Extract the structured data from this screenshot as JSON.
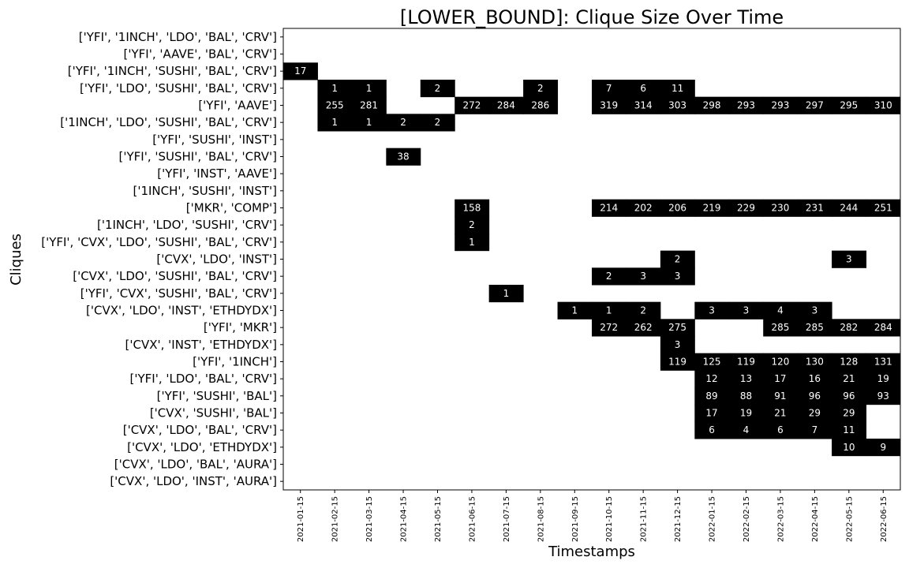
{
  "chart_data": {
    "type": "heatmap",
    "title": "[LOWER_BOUND]: Clique Size Over Time",
    "xlabel": "Timestamps",
    "ylabel": "Cliques",
    "x": [
      "2021-01-15",
      "2021-02-15",
      "2021-03-15",
      "2021-04-15",
      "2021-05-15",
      "2021-06-15",
      "2021-07-15",
      "2021-08-15",
      "2021-09-15",
      "2021-10-15",
      "2021-11-15",
      "2021-12-15",
      "2022-01-15",
      "2022-02-15",
      "2022-03-15",
      "2022-04-15",
      "2022-05-15",
      "2022-06-15"
    ],
    "y": [
      "['YFI', '1INCH', 'LDO', 'BAL', 'CRV']",
      "['YFI', 'AAVE', 'BAL', 'CRV']",
      "['YFI', '1INCH', 'SUSHI', 'BAL', 'CRV']",
      "['YFI', 'LDO', 'SUSHI', 'BAL', 'CRV']",
      "['YFI', 'AAVE']",
      "['1INCH', 'LDO', 'SUSHI', 'BAL', 'CRV']",
      "['YFI', 'SUSHI', 'INST']",
      "['YFI', 'SUSHI', 'BAL', 'CRV']",
      "['YFI', 'INST', 'AAVE']",
      "['1INCH', 'SUSHI', 'INST']",
      "['MKR', 'COMP']",
      "['1INCH', 'LDO', 'SUSHI', 'CRV']",
      "['YFI', 'CVX', 'LDO', 'SUSHI', 'BAL', 'CRV']",
      "['CVX', 'LDO', 'INST']",
      "['CVX', 'LDO', 'SUSHI', 'BAL', 'CRV']",
      "['YFI', 'CVX', 'SUSHI', 'BAL', 'CRV']",
      "['CVX', 'LDO', 'INST', 'ETHDYDX']",
      "['YFI', 'MKR']",
      "['CVX', 'INST', 'ETHDYDX']",
      "['YFI', '1INCH']",
      "['YFI', 'LDO', 'BAL', 'CRV']",
      "['YFI', 'SUSHI', 'BAL']",
      "['CVX', 'SUSHI', 'BAL']",
      "['CVX', 'LDO', 'BAL', 'CRV']",
      "['CVX', 'LDO', 'ETHDYDX']",
      "['CVX', 'LDO', 'BAL', 'AURA']",
      "['CVX', 'LDO', 'INST', 'AURA']"
    ],
    "cells": [
      [
        2,
        0,
        17
      ],
      [
        3,
        1,
        1
      ],
      [
        3,
        2,
        1
      ],
      [
        3,
        4,
        2
      ],
      [
        3,
        7,
        2
      ],
      [
        3,
        9,
        7
      ],
      [
        3,
        10,
        6
      ],
      [
        3,
        11,
        11
      ],
      [
        4,
        1,
        255
      ],
      [
        4,
        2,
        281
      ],
      [
        4,
        5,
        272
      ],
      [
        4,
        6,
        284
      ],
      [
        4,
        7,
        286
      ],
      [
        4,
        9,
        319
      ],
      [
        4,
        10,
        314
      ],
      [
        4,
        11,
        303
      ],
      [
        4,
        12,
        298
      ],
      [
        4,
        13,
        293
      ],
      [
        4,
        14,
        293
      ],
      [
        4,
        15,
        297
      ],
      [
        4,
        16,
        295
      ],
      [
        4,
        17,
        310
      ],
      [
        5,
        1,
        1
      ],
      [
        5,
        2,
        1
      ],
      [
        5,
        3,
        2
      ],
      [
        5,
        4,
        2
      ],
      [
        7,
        3,
        38
      ],
      [
        10,
        5,
        158
      ],
      [
        10,
        9,
        214
      ],
      [
        10,
        10,
        202
      ],
      [
        10,
        11,
        206
      ],
      [
        10,
        12,
        219
      ],
      [
        10,
        13,
        229
      ],
      [
        10,
        14,
        230
      ],
      [
        10,
        15,
        231
      ],
      [
        10,
        16,
        244
      ],
      [
        10,
        17,
        251
      ],
      [
        11,
        5,
        2
      ],
      [
        12,
        5,
        1
      ],
      [
        13,
        11,
        2
      ],
      [
        13,
        16,
        3
      ],
      [
        14,
        9,
        2
      ],
      [
        14,
        10,
        3
      ],
      [
        14,
        11,
        3
      ],
      [
        15,
        6,
        1
      ],
      [
        16,
        8,
        1
      ],
      [
        16,
        9,
        1
      ],
      [
        16,
        10,
        2
      ],
      [
        16,
        12,
        3
      ],
      [
        16,
        13,
        3
      ],
      [
        16,
        14,
        4
      ],
      [
        16,
        15,
        3
      ],
      [
        17,
        9,
        272
      ],
      [
        17,
        10,
        262
      ],
      [
        17,
        11,
        275
      ],
      [
        17,
        14,
        285
      ],
      [
        17,
        15,
        285
      ],
      [
        17,
        16,
        282
      ],
      [
        17,
        17,
        284
      ],
      [
        18,
        11,
        3
      ],
      [
        19,
        11,
        119
      ],
      [
        19,
        12,
        125
      ],
      [
        19,
        13,
        119
      ],
      [
        19,
        14,
        120
      ],
      [
        19,
        15,
        130
      ],
      [
        19,
        16,
        128
      ],
      [
        19,
        17,
        131
      ],
      [
        20,
        12,
        12
      ],
      [
        20,
        13,
        13
      ],
      [
        20,
        14,
        17
      ],
      [
        20,
        15,
        16
      ],
      [
        20,
        16,
        21
      ],
      [
        20,
        17,
        19
      ],
      [
        21,
        12,
        89
      ],
      [
        21,
        13,
        88
      ],
      [
        21,
        14,
        91
      ],
      [
        21,
        15,
        96
      ],
      [
        21,
        16,
        96
      ],
      [
        21,
        17,
        93
      ],
      [
        22,
        12,
        17
      ],
      [
        22,
        13,
        19
      ],
      [
        22,
        14,
        21
      ],
      [
        22,
        15,
        29
      ],
      [
        22,
        16,
        29
      ],
      [
        23,
        12,
        6
      ],
      [
        23,
        13,
        4
      ],
      [
        23,
        14,
        6
      ],
      [
        23,
        15,
        7
      ],
      [
        23,
        16,
        11
      ],
      [
        24,
        16,
        10
      ],
      [
        24,
        17,
        9
      ]
    ],
    "colors": {
      "cell": "#000000",
      "cell_text": "#ffffff",
      "background": "#ffffff"
    },
    "legend": "none",
    "grid": false
  }
}
